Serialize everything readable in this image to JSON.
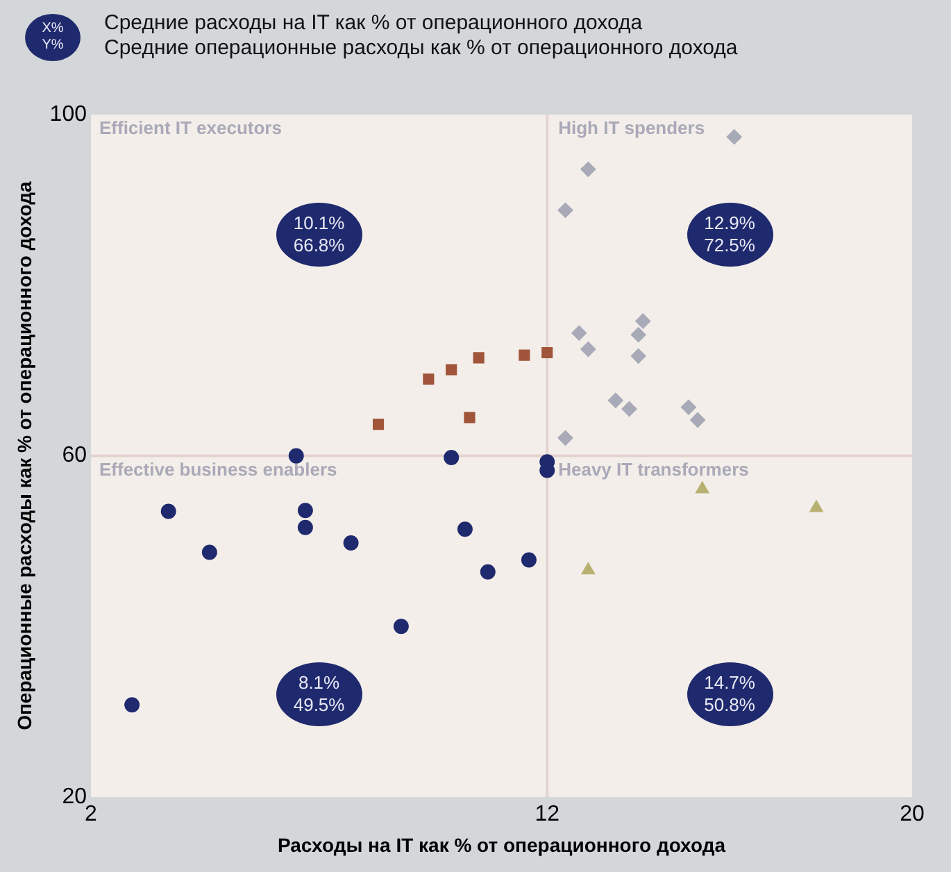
{
  "chart_data": {
    "type": "scatter",
    "title": "Средние расходы на IT как % от операционного дохода",
    "subtitle": "Средние операционные расходы как % от операционного дохода",
    "xlabel": "Расходы на IT как % от операционного дохода",
    "ylabel": "Операционные расходы как % от операционного дохода",
    "xlim": [
      2,
      20
    ],
    "xticks": [
      2,
      12,
      20
    ],
    "ylim": [
      20,
      100
    ],
    "yticks": [
      20,
      60,
      100
    ],
    "grid": false,
    "legend": false,
    "series": [
      {
        "color": "#1f2a6e",
        "marker": "circle",
        "x": [
          6.5,
          9.9,
          12.0,
          12.0,
          3.7,
          6.7,
          6.7,
          4.6,
          7.7,
          10.2,
          10.7,
          11.6,
          8.8,
          2.9
        ],
        "values": [
          60.0,
          59.8,
          59.3,
          58.3,
          53.5,
          53.6,
          51.6,
          48.7,
          49.8,
          51.4,
          46.4,
          47.8,
          40.0,
          30.8
        ]
      },
      {
        "color": "#a0553a",
        "marker": "square",
        "x": [
          8.3,
          9.4,
          9.9,
          10.5,
          10.3,
          11.5,
          12.0
        ],
        "values": [
          63.7,
          69.0,
          70.1,
          71.5,
          64.5,
          71.8,
          72.1
        ]
      },
      {
        "color": "#a8aab8",
        "marker": "diamond",
        "x": [
          16.1,
          12.9,
          12.4,
          14.1,
          14.0,
          14.0,
          12.7,
          12.9,
          13.5,
          13.8,
          15.1,
          15.3,
          12.4
        ],
        "values": [
          97.4,
          93.6,
          88.8,
          75.8,
          74.2,
          71.7,
          74.4,
          72.5,
          66.5,
          65.5,
          65.7,
          64.2,
          62.1
        ]
      },
      {
        "color": "#b8b070",
        "marker": "triangle",
        "x": [
          15.4,
          17.9,
          12.9
        ],
        "values": [
          56.1,
          53.9,
          46.6
        ]
      }
    ],
    "ref_lines": [
      {
        "axis": "x",
        "value": 12,
        "color": "#e3d3cf"
      },
      {
        "axis": "y",
        "value": 60,
        "color": "#e3d3cf"
      }
    ],
    "annotations": [
      "Efficient IT executors",
      "High IT spenders",
      "Effective business enablers",
      "Heavy IT transformers",
      "10.1%\n66.8%",
      "12.9%\n72.5%",
      "8.1%\n49.5%",
      "14.7%\n50.8%",
      "X%\nY%"
    ]
  }
}
